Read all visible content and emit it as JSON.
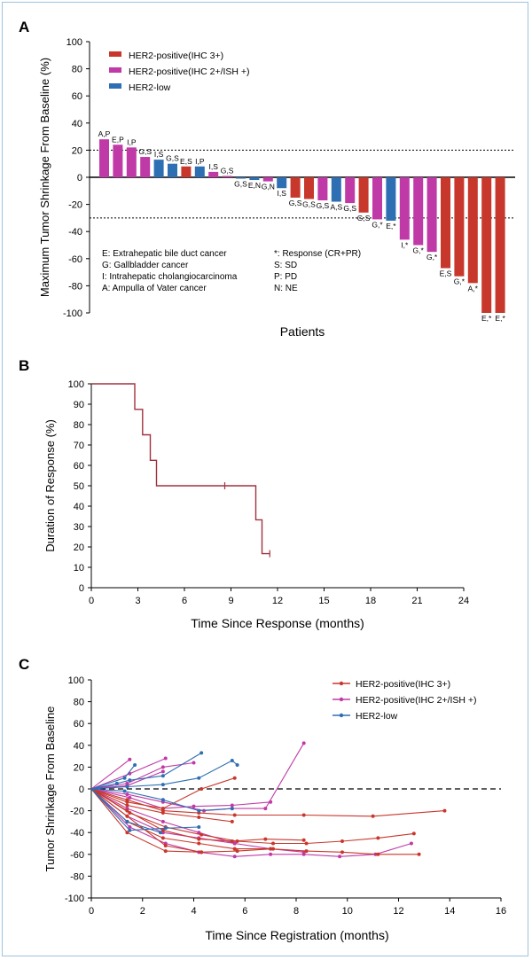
{
  "colors": {
    "her2_ihc3": "#c8372c",
    "her2_ihc2": "#c03aa7",
    "her2_low": "#2e6fb3",
    "axis": "#000000",
    "dotted": "#000000",
    "frame": "#9ec3df"
  },
  "chart_data": [
    {
      "panel_label": "A",
      "type": "bar",
      "title": "",
      "xlabel": "Patients",
      "ylabel": "Maximum Tumor Shrinkage From Baseline (%)",
      "ylim": [
        -100,
        100
      ],
      "yticks": [
        100,
        80,
        60,
        40,
        20,
        0,
        -20,
        -40,
        -60,
        -80,
        -100
      ],
      "reference_lines": [
        20,
        -30
      ],
      "grid": false,
      "legend_position": "top-left",
      "legend": [
        {
          "key": "ihc3",
          "label": "HER2-positive(IHC 3+)",
          "color": "#c8372c"
        },
        {
          "key": "ihc2",
          "label": "HER2-positive(IHC 2+/ISH +)",
          "color": "#c03aa7"
        },
        {
          "key": "low",
          "label": "HER2-low",
          "color": "#2e6fb3"
        }
      ],
      "key_left": [
        "E: Extrahepatic bile duct cancer",
        "G: Gallbladder cancer",
        "I: Intrahepatic cholangiocarcinoma",
        "A: Ampulla of Vater cancer"
      ],
      "key_right": [
        "*: Response (CR+PR)",
        "S: SD",
        "P: PD",
        "N: NE"
      ],
      "bars": [
        {
          "label": "A,P",
          "value": 28,
          "group": "ihc2"
        },
        {
          "label": "E,P",
          "value": 24,
          "group": "ihc2"
        },
        {
          "label": "I,P",
          "value": 22,
          "group": "ihc2"
        },
        {
          "label": "G,S",
          "value": 15,
          "group": "ihc2"
        },
        {
          "label": "I,S",
          "value": 13,
          "group": "low"
        },
        {
          "label": "G,S",
          "value": 10,
          "group": "low"
        },
        {
          "label": "E,S",
          "value": 8,
          "group": "ihc3"
        },
        {
          "label": "I,P",
          "value": 8,
          "group": "low"
        },
        {
          "label": "I,S",
          "value": 4,
          "group": "ihc2"
        },
        {
          "label": "G,S",
          "value": 1,
          "group": "ihc2"
        },
        {
          "label": "G,S",
          "value": -1,
          "group": "low"
        },
        {
          "label": "E,N",
          "value": -2,
          "group": "low"
        },
        {
          "label": "G,N",
          "value": -3,
          "group": "ihc2"
        },
        {
          "label": "I,S",
          "value": -8,
          "group": "low"
        },
        {
          "label": "G,S",
          "value": -15,
          "group": "ihc3"
        },
        {
          "label": "G,S",
          "value": -16,
          "group": "ihc3"
        },
        {
          "label": "G,S",
          "value": -17,
          "group": "ihc2"
        },
        {
          "label": "A,S",
          "value": -18,
          "group": "low"
        },
        {
          "label": "G,S",
          "value": -19,
          "group": "ihc2"
        },
        {
          "label": "G,S",
          "value": -26,
          "group": "ihc3"
        },
        {
          "label": "G,*",
          "value": -31,
          "group": "ihc2"
        },
        {
          "label": "E,*",
          "value": -32,
          "group": "low"
        },
        {
          "label": "I,*",
          "value": -46,
          "group": "ihc2"
        },
        {
          "label": "G,*",
          "value": -50,
          "group": "ihc2"
        },
        {
          "label": "G,*",
          "value": -55,
          "group": "ihc2"
        },
        {
          "label": "E,S",
          "value": -67,
          "group": "ihc3"
        },
        {
          "label": "G,*",
          "value": -73,
          "group": "ihc3"
        },
        {
          "label": "A,*",
          "value": -78,
          "group": "ihc3"
        },
        {
          "label": "E,*",
          "value": -100,
          "group": "ihc3"
        },
        {
          "label": "E,*",
          "value": -100,
          "group": "ihc3"
        }
      ]
    },
    {
      "panel_label": "B",
      "type": "line",
      "title": "",
      "xlabel": "Time Since Response (months)",
      "ylabel": "Duration of Response (%)",
      "xlim": [
        0,
        24
      ],
      "ylim": [
        0,
        100
      ],
      "xticks": [
        0,
        3,
        6,
        9,
        12,
        15,
        18,
        21,
        24
      ],
      "yticks": [
        0,
        10,
        20,
        30,
        40,
        50,
        60,
        70,
        80,
        90,
        100
      ],
      "grid": false,
      "color": "#a0323f",
      "steps": [
        [
          0,
          100
        ],
        [
          2.8,
          100
        ],
        [
          2.8,
          87.5
        ],
        [
          3.3,
          87.5
        ],
        [
          3.3,
          75
        ],
        [
          3.8,
          75
        ],
        [
          3.8,
          62.5
        ],
        [
          4.2,
          62.5
        ],
        [
          4.2,
          50
        ],
        [
          10.6,
          50
        ],
        [
          10.6,
          33.3
        ],
        [
          11.0,
          33.3
        ],
        [
          11.0,
          16.7
        ],
        [
          11.5,
          16.7
        ]
      ],
      "censor": [
        [
          8.6,
          50
        ],
        [
          11.5,
          16.7
        ]
      ]
    },
    {
      "panel_label": "C",
      "type": "line",
      "title": "",
      "xlabel": "Time Since Registration (months)",
      "ylabel": "Tumor Shrinkage From Baseline",
      "xlim": [
        0,
        16
      ],
      "ylim": [
        -100,
        100
      ],
      "xticks": [
        0,
        2,
        4,
        6,
        8,
        10,
        12,
        14,
        16
      ],
      "yticks": [
        100,
        80,
        60,
        40,
        20,
        0,
        -20,
        -40,
        -60,
        -80,
        -100
      ],
      "reference_lines": [
        0
      ],
      "grid": false,
      "legend_position": "top-right",
      "legend": [
        {
          "key": "ihc3",
          "label": "HER2-positive(IHC 3+)",
          "color": "#c8372c"
        },
        {
          "key": "ihc2",
          "label": "HER2-positive(IHC 2+/ISH +)",
          "color": "#c03aa7"
        },
        {
          "key": "low",
          "label": "HER2-low",
          "color": "#2e6fb3"
        }
      ],
      "series": [
        {
          "group": "ihc2",
          "points": [
            [
              0,
              0
            ],
            [
              1.5,
              27
            ]
          ]
        },
        {
          "group": "ihc2",
          "points": [
            [
              0,
              0
            ],
            [
              1.5,
              14
            ],
            [
              2.9,
              28
            ]
          ]
        },
        {
          "group": "ihc2",
          "points": [
            [
              0,
              0
            ],
            [
              1.4,
              5
            ],
            [
              2.8,
              20
            ],
            [
              4.0,
              24
            ]
          ]
        },
        {
          "group": "ihc2",
          "points": [
            [
              0,
              0
            ],
            [
              1.4,
              3
            ],
            [
              2.8,
              16
            ]
          ]
        },
        {
          "group": "ihc2",
          "points": [
            [
              0,
              0
            ],
            [
              1.5,
              -8
            ],
            [
              2.8,
              -18
            ],
            [
              4.0,
              -16
            ],
            [
              5.5,
              -15
            ],
            [
              7.0,
              -12
            ]
          ]
        },
        {
          "group": "ihc2",
          "points": [
            [
              0,
              0
            ],
            [
              1.4,
              -5
            ],
            [
              2.8,
              -12
            ],
            [
              4.4,
              -20
            ],
            [
              5.5,
              -18
            ],
            [
              6.8,
              -18
            ],
            [
              8.3,
              42
            ]
          ]
        },
        {
          "group": "ihc2",
          "points": [
            [
              0,
              0
            ],
            [
              1.4,
              -18
            ],
            [
              2.8,
              -30
            ],
            [
              4.2,
              -40
            ],
            [
              5.6,
              -50
            ],
            [
              7.0,
              -55
            ],
            [
              8.3,
              -58
            ]
          ]
        },
        {
          "group": "ihc2",
          "points": [
            [
              0,
              0
            ],
            [
              1.5,
              -35
            ],
            [
              2.9,
              -50
            ],
            [
              4.2,
              -58
            ],
            [
              5.6,
              -62
            ],
            [
              7.0,
              -60
            ],
            [
              8.3,
              -60
            ],
            [
              9.7,
              -62
            ],
            [
              11.1,
              -60
            ],
            [
              12.5,
              -50
            ]
          ]
        },
        {
          "group": "ihc2",
          "points": [
            [
              0,
              0
            ],
            [
              1.4,
              -25
            ],
            [
              2.8,
              -40
            ],
            [
              4.2,
              -45
            ],
            [
              5.6,
              -50
            ]
          ]
        },
        {
          "group": "ihc3",
          "points": [
            [
              0,
              0
            ],
            [
              1.4,
              -10
            ],
            [
              2.8,
              -20
            ],
            [
              4.2,
              -22
            ],
            [
              5.6,
              -24
            ],
            [
              8.3,
              -24
            ],
            [
              11.0,
              -25
            ],
            [
              13.8,
              -20
            ]
          ]
        },
        {
          "group": "ihc3",
          "points": [
            [
              0,
              0
            ],
            [
              1.4,
              -15
            ],
            [
              2.8,
              -22
            ],
            [
              4.2,
              -26
            ],
            [
              5.5,
              -30
            ]
          ]
        },
        {
          "group": "ihc3",
          "points": [
            [
              0,
              0
            ],
            [
              1.5,
              -22
            ],
            [
              2.9,
              -35
            ],
            [
              4.3,
              -42
            ],
            [
              5.7,
              -48
            ],
            [
              7.1,
              -50
            ],
            [
              8.4,
              -50
            ],
            [
              9.8,
              -48
            ],
            [
              11.2,
              -45
            ],
            [
              12.6,
              -41
            ]
          ]
        },
        {
          "group": "ihc3",
          "points": [
            [
              0,
              0
            ],
            [
              1.4,
              -30
            ],
            [
              2.8,
              -45
            ],
            [
              4.2,
              -50
            ],
            [
              5.6,
              -55
            ],
            [
              7.0,
              -55
            ],
            [
              8.4,
              -57
            ],
            [
              9.8,
              -58
            ],
            [
              11.2,
              -60
            ],
            [
              12.8,
              -60
            ]
          ]
        },
        {
          "group": "ihc3",
          "points": [
            [
              0,
              0
            ],
            [
              1.4,
              -25
            ],
            [
              2.9,
              -52
            ],
            [
              4.3,
              -58
            ],
            [
              5.7,
              -57
            ],
            [
              7.1,
              -55
            ]
          ]
        },
        {
          "group": "ihc3",
          "points": [
            [
              0,
              0
            ],
            [
              1.4,
              -40
            ],
            [
              2.9,
              -57
            ],
            [
              4.3,
              -58
            ]
          ]
        },
        {
          "group": "ihc3",
          "points": [
            [
              0,
              0
            ],
            [
              1.4,
              -20
            ],
            [
              2.8,
              -38
            ],
            [
              4.2,
              -46
            ],
            [
              5.5,
              -48
            ],
            [
              6.8,
              -46
            ],
            [
              8.3,
              -47
            ]
          ]
        },
        {
          "group": "ihc3",
          "points": [
            [
              0,
              0
            ],
            [
              1.4,
              -12
            ],
            [
              2.8,
              -18
            ],
            [
              4.3,
              0
            ],
            [
              5.6,
              10
            ]
          ]
        },
        {
          "group": "low",
          "points": [
            [
              0,
              0
            ],
            [
              1.0,
              5
            ],
            [
              1.5,
              8
            ],
            [
              2.8,
              12
            ],
            [
              4.3,
              33
            ]
          ]
        },
        {
          "group": "low",
          "points": [
            [
              0,
              0
            ],
            [
              1.3,
              10
            ],
            [
              1.7,
              22
            ]
          ]
        },
        {
          "group": "low",
          "points": [
            [
              0,
              0
            ],
            [
              1.4,
              2
            ],
            [
              2.8,
              4
            ],
            [
              4.2,
              10
            ],
            [
              5.5,
              26
            ],
            [
              5.7,
              22
            ]
          ]
        },
        {
          "group": "low",
          "points": [
            [
              0,
              0
            ],
            [
              1.3,
              -2
            ],
            [
              2.8,
              -10
            ],
            [
              4.2,
              -20
            ],
            [
              5.5,
              -18
            ]
          ]
        },
        {
          "group": "low",
          "points": [
            [
              0,
              0
            ],
            [
              1.5,
              -38
            ],
            [
              2.9,
              -36
            ],
            [
              4.2,
              -35
            ]
          ]
        },
        {
          "group": "low",
          "points": [
            [
              0,
              0
            ],
            [
              1.4,
              -30
            ],
            [
              2.7,
              -40
            ]
          ]
        }
      ]
    }
  ]
}
